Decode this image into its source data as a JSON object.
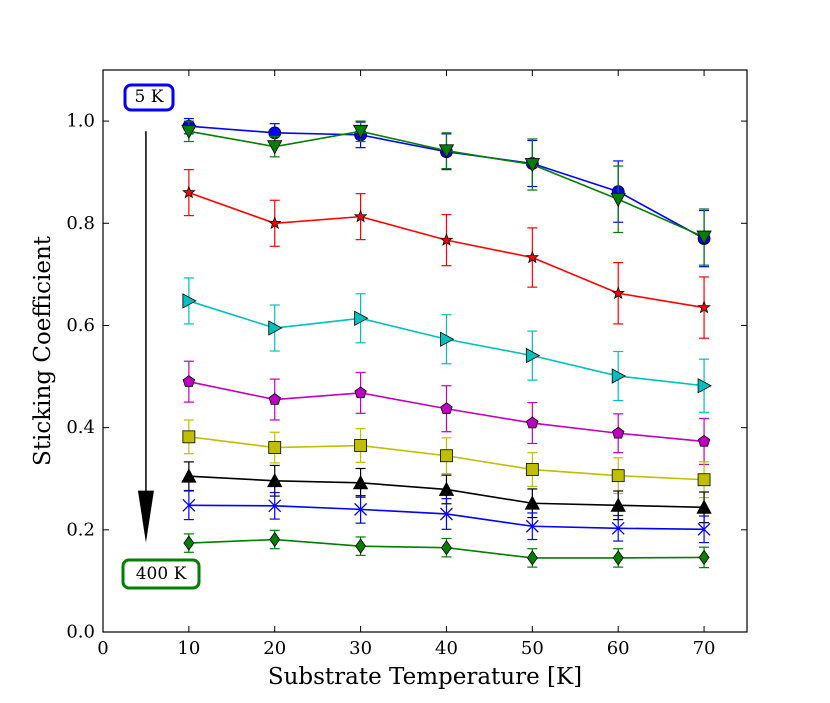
{
  "chart_data": {
    "type": "line",
    "title": "",
    "xlabel": "Substrate Temperature [K]",
    "ylabel": "Sticking Coefficient",
    "xlim": [
      0,
      75
    ],
    "ylim": [
      0,
      1.1
    ],
    "xticks": [
      0,
      10,
      20,
      30,
      40,
      50,
      60,
      70
    ],
    "yticks": [
      0.0,
      0.2,
      0.4,
      0.6,
      0.8,
      1.0
    ],
    "xtick_labels": [
      "0",
      "10",
      "20",
      "30",
      "40",
      "50",
      "60",
      "70"
    ],
    "ytick_labels": [
      "0.0",
      "0.2",
      "0.4",
      "0.6",
      "0.8",
      "1.0"
    ],
    "x": [
      10,
      20,
      30,
      40,
      50,
      60,
      70
    ],
    "annotations": {
      "top_label": "5 K",
      "bottom_label": "400 K",
      "top_color": "#0000ff",
      "bottom_color": "#007f00",
      "arrow_x": 5,
      "arrow_from": 0.98,
      "arrow_to": 0.175
    },
    "series": [
      {
        "name": "5 K",
        "color": "#0000ff",
        "marker": "circle",
        "values": [
          0.99,
          0.977,
          0.973,
          0.94,
          0.917,
          0.862,
          0.77
        ],
        "errors": [
          0.015,
          0.018,
          0.025,
          0.035,
          0.045,
          0.06,
          0.055
        ]
      },
      {
        "name": "series-2",
        "color": "#007f00",
        "marker": "triangle-down",
        "values": [
          0.98,
          0.95,
          0.98,
          0.942,
          0.915,
          0.847,
          0.773
        ],
        "errors": [
          0.02,
          0.02,
          0.02,
          0.035,
          0.05,
          0.065,
          0.055
        ]
      },
      {
        "name": "series-3",
        "color": "#ff0000",
        "marker": "star",
        "values": [
          0.86,
          0.8,
          0.813,
          0.767,
          0.733,
          0.663,
          0.635
        ],
        "errors": [
          0.045,
          0.045,
          0.045,
          0.05,
          0.058,
          0.06,
          0.06
        ]
      },
      {
        "name": "series-4",
        "color": "#00bfbf",
        "marker": "triangle-right",
        "values": [
          0.648,
          0.595,
          0.614,
          0.573,
          0.541,
          0.501,
          0.482
        ],
        "errors": [
          0.045,
          0.045,
          0.048,
          0.048,
          0.048,
          0.048,
          0.052
        ]
      },
      {
        "name": "series-5",
        "color": "#bf00bf",
        "marker": "pentagon",
        "values": [
          0.49,
          0.455,
          0.468,
          0.437,
          0.409,
          0.389,
          0.373
        ],
        "errors": [
          0.04,
          0.04,
          0.04,
          0.045,
          0.04,
          0.038,
          0.045
        ]
      },
      {
        "name": "series-6",
        "color": "#bfbf00",
        "marker": "square",
        "values": [
          0.382,
          0.361,
          0.365,
          0.345,
          0.318,
          0.306,
          0.298
        ],
        "errors": [
          0.033,
          0.03,
          0.033,
          0.035,
          0.033,
          0.035,
          0.035
        ]
      },
      {
        "name": "series-7",
        "color": "#000000",
        "marker": "triangle-up",
        "values": [
          0.305,
          0.296,
          0.292,
          0.279,
          0.252,
          0.248,
          0.244
        ],
        "errors": [
          0.028,
          0.03,
          0.028,
          0.028,
          0.028,
          0.028,
          0.03
        ]
      },
      {
        "name": "series-8",
        "color": "#0000ff",
        "marker": "x",
        "values": [
          0.248,
          0.247,
          0.24,
          0.231,
          0.207,
          0.203,
          0.201
        ],
        "errors": [
          0.028,
          0.026,
          0.027,
          0.03,
          0.026,
          0.025,
          0.026
        ]
      },
      {
        "name": "400 K",
        "color": "#007f00",
        "marker": "diamond",
        "values": [
          0.174,
          0.181,
          0.168,
          0.165,
          0.145,
          0.145,
          0.146
        ],
        "errors": [
          0.018,
          0.018,
          0.018,
          0.018,
          0.018,
          0.018,
          0.02
        ]
      }
    ]
  }
}
